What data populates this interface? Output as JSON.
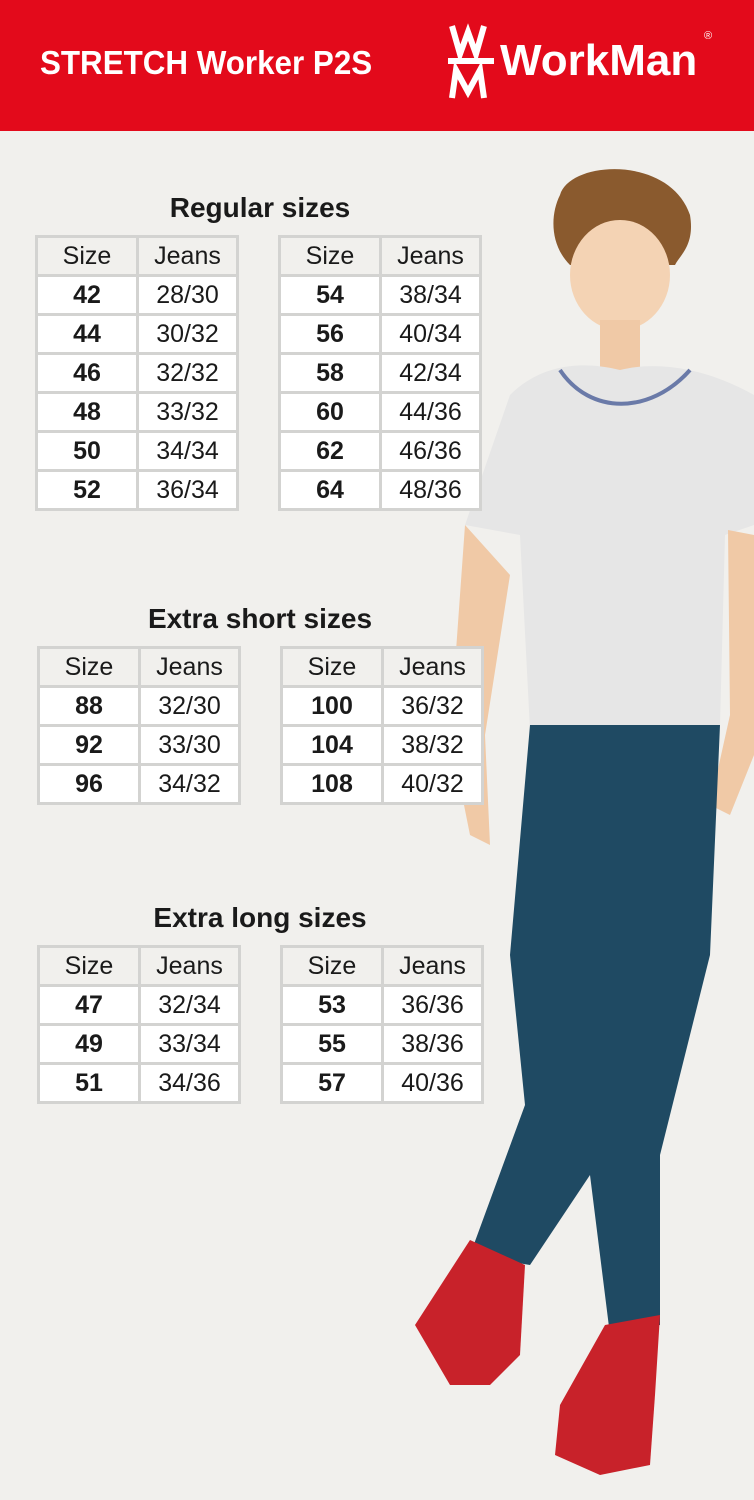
{
  "header": {
    "product": "STRETCH Worker P2S",
    "brand": "WorkMan",
    "brand_mark": "WM",
    "registered": "®"
  },
  "columns": {
    "size": "Size",
    "jeans": "Jeans"
  },
  "sections": [
    {
      "title": "Regular sizes",
      "tables": [
        [
          [
            "42",
            "28/30"
          ],
          [
            "44",
            "30/32"
          ],
          [
            "46",
            "32/32"
          ],
          [
            "48",
            "33/32"
          ],
          [
            "50",
            "34/34"
          ],
          [
            "52",
            "36/34"
          ]
        ],
        [
          [
            "54",
            "38/34"
          ],
          [
            "56",
            "40/34"
          ],
          [
            "58",
            "42/34"
          ],
          [
            "60",
            "44/36"
          ],
          [
            "62",
            "46/36"
          ],
          [
            "64",
            "48/36"
          ]
        ]
      ]
    },
    {
      "title": "Extra short sizes",
      "tables": [
        [
          [
            "88",
            "32/30"
          ],
          [
            "92",
            "33/30"
          ],
          [
            "96",
            "34/32"
          ]
        ],
        [
          [
            "100",
            "36/32"
          ],
          [
            "104",
            "38/32"
          ],
          [
            "108",
            "40/32"
          ]
        ]
      ]
    },
    {
      "title": "Extra long sizes",
      "tables": [
        [
          [
            "47",
            "32/34"
          ],
          [
            "49",
            "33/34"
          ],
          [
            "51",
            "34/36"
          ]
        ],
        [
          [
            "53",
            "36/36"
          ],
          [
            "55",
            "38/36"
          ],
          [
            "57",
            "40/36"
          ]
        ]
      ]
    }
  ],
  "colors": {
    "brand_red": "#e30a1b",
    "jeans": "#1f4a63",
    "shoes": "#c8222a",
    "shirt": "#e6e6e6"
  }
}
